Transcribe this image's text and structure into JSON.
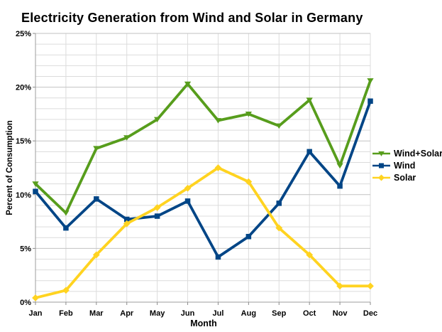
{
  "title": "Electricity Generation from Wind and Solar in Germany",
  "chart_data": {
    "type": "line",
    "title": "Electricity Generation from Wind and Solar in Germany",
    "xlabel": "Month",
    "ylabel": "Percent of Consumption",
    "ylim": [
      0,
      25
    ],
    "y_major_step": 5,
    "y_minor_step": 1,
    "grid": true,
    "legend_position": "right",
    "y_tick_labels": [
      "0%",
      "5%",
      "10%",
      "15%",
      "20%",
      "25%"
    ],
    "categories": [
      "Jan",
      "Feb",
      "Mar",
      "Apr",
      "May",
      "Jun",
      "Jul",
      "Aug",
      "Sep",
      "Oct",
      "Nov",
      "Dec"
    ],
    "series": [
      {
        "name": "Wind+Solar",
        "color": "#579D1C",
        "marker": "triangle-down",
        "values": [
          11.0,
          8.3,
          14.3,
          15.3,
          17.0,
          20.3,
          16.9,
          17.5,
          16.4,
          18.8,
          12.7,
          20.6
        ]
      },
      {
        "name": "Wind",
        "color": "#004586",
        "marker": "square",
        "values": [
          10.3,
          6.9,
          9.6,
          7.7,
          8.0,
          9.4,
          4.2,
          6.1,
          9.2,
          14.0,
          10.8,
          18.7
        ]
      },
      {
        "name": "Solar",
        "color": "#FFD320",
        "marker": "diamond",
        "values": [
          0.4,
          1.1,
          4.4,
          7.3,
          8.8,
          10.6,
          12.5,
          11.2,
          6.9,
          4.4,
          1.5,
          1.5
        ]
      }
    ]
  },
  "colors": {
    "background": "#FFFFFF",
    "grid_minor": "#DCDCDC",
    "grid_major": "#C2C2C2",
    "axis": "#9E9E9E",
    "tick": "#8A8A8A",
    "text": "#000000"
  }
}
